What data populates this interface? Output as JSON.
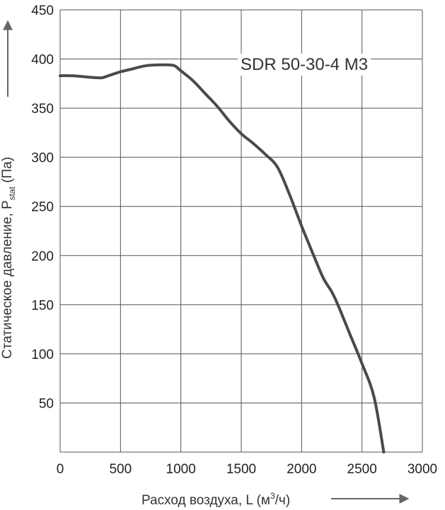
{
  "chart_data": {
    "type": "line",
    "title": "",
    "annotation": "SDR 50-30-4 M3",
    "xlabel": "Расход воздуха, L (м³/ч)",
    "xlabel_parts": {
      "main": "Расход воздуха, L (м",
      "sup": "3",
      "tail": "/ч)"
    },
    "ylabel": "Статическое давление, Pstat (Па)",
    "ylabel_parts": {
      "main": "Статическое давление, P",
      "sub": "stat",
      "tail": " (Па)"
    },
    "xlim": [
      0,
      3000
    ],
    "ylim": [
      0,
      450
    ],
    "x_ticks": [
      0,
      500,
      1000,
      1500,
      2000,
      2500,
      3000
    ],
    "y_ticks": [
      50,
      100,
      150,
      200,
      250,
      300,
      350,
      400,
      450
    ],
    "grid": true,
    "colors": {
      "line": "#4a4a4a",
      "grid": "#555555",
      "arrow": "#666666"
    },
    "series": [
      {
        "x": [
          0,
          100,
          200,
          300,
          350,
          400,
          500,
          600,
          700,
          800,
          900,
          950,
          1000,
          1100,
          1200,
          1300,
          1400,
          1500,
          1600,
          1700,
          1800,
          1900,
          2000,
          2100,
          2180,
          2250,
          2300,
          2400,
          2500,
          2600,
          2680
        ],
        "y": [
          383,
          383,
          382,
          381,
          381,
          383,
          387,
          390,
          393,
          394,
          394,
          393,
          388,
          378,
          365,
          352,
          337,
          324,
          314,
          303,
          290,
          262,
          230,
          200,
          177,
          163,
          150,
          120,
          90,
          56,
          0
        ]
      }
    ]
  }
}
